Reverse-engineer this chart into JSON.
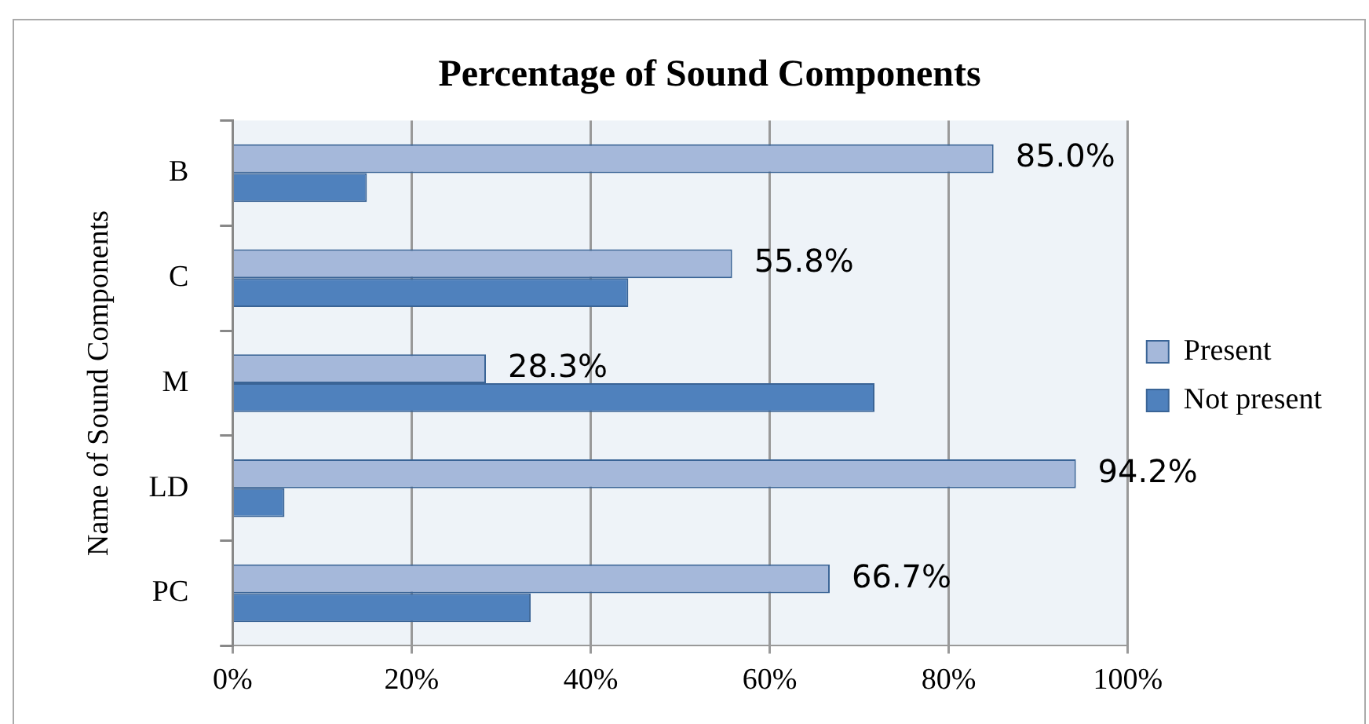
{
  "chart_data": {
    "type": "bar",
    "orientation": "horizontal",
    "title": "Percentage of Sound Components",
    "ylabel": "Name of Sound Components",
    "categories": [
      "B",
      "C",
      "M",
      "LD",
      "PC"
    ],
    "series": [
      {
        "name": "Present",
        "color": "#a5b8da",
        "values": [
          85.0,
          55.8,
          28.3,
          94.2,
          66.7
        ],
        "value_labels": [
          "85.0%",
          "55.8%",
          "28.3%",
          "94.2%",
          "66.7%"
        ]
      },
      {
        "name": "Not present",
        "color": "#4f81bd",
        "values": [
          15.0,
          44.2,
          71.7,
          5.8,
          33.3
        ]
      }
    ],
    "xlim": [
      0,
      100
    ],
    "xticks": [
      {
        "value": 0,
        "label": "0%"
      },
      {
        "value": 20,
        "label": "20%"
      },
      {
        "value": 40,
        "label": "40%"
      },
      {
        "value": 60,
        "label": "60%"
      },
      {
        "value": 80,
        "label": "80%"
      },
      {
        "value": 100,
        "label": "100%"
      }
    ],
    "grid": "x",
    "legend": "right"
  }
}
